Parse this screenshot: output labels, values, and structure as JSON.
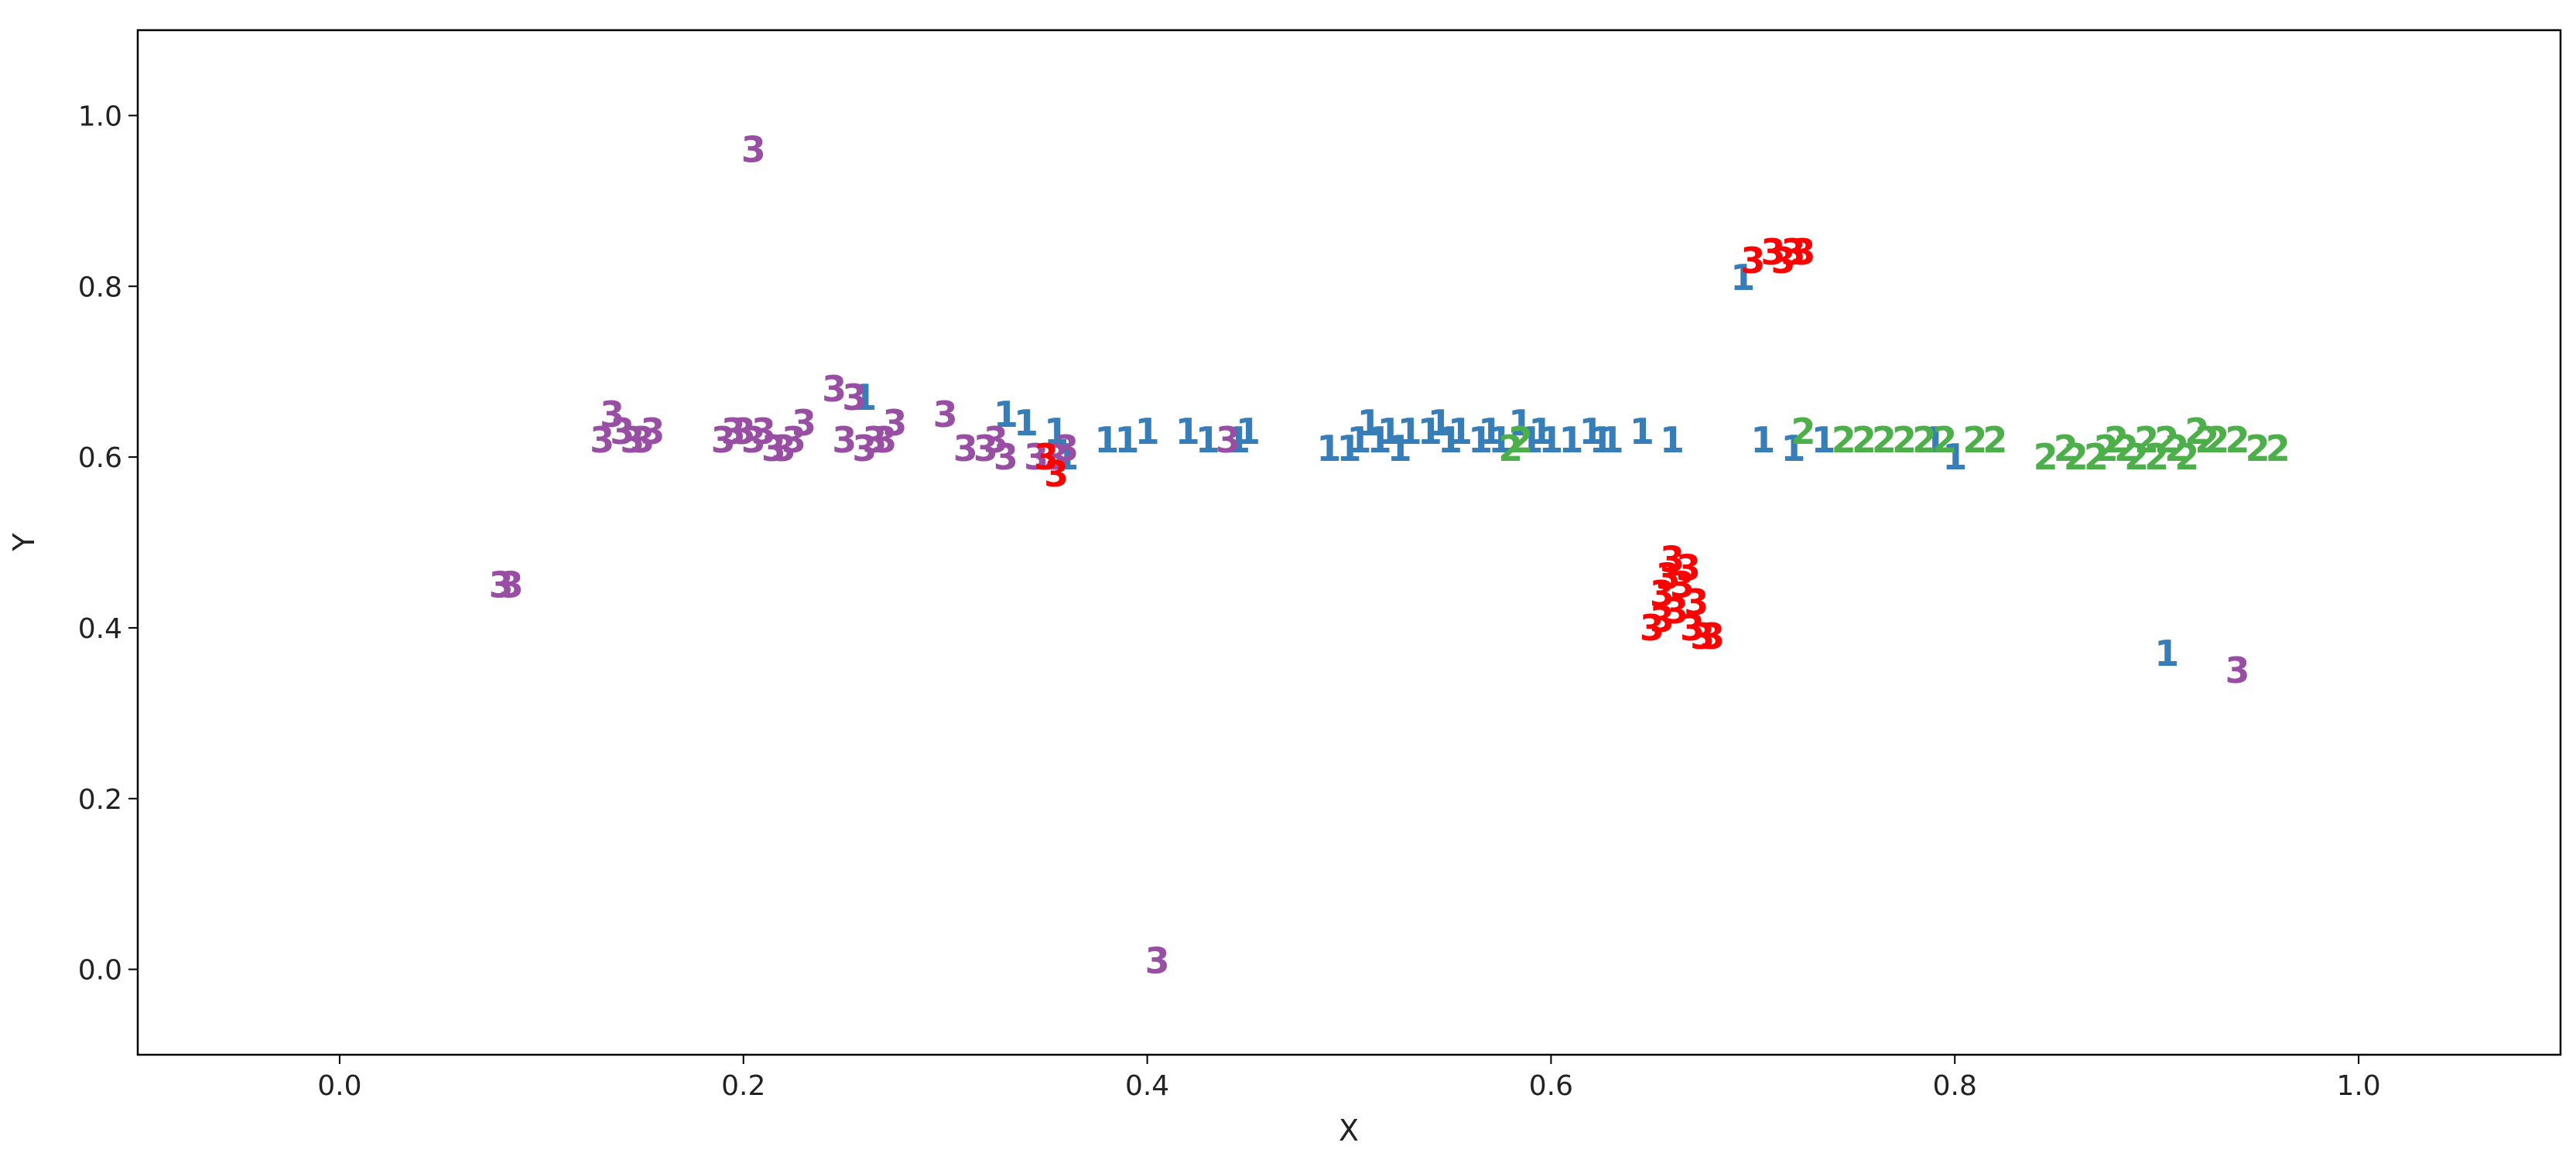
{
  "chart_data": {
    "type": "scatter",
    "title": "",
    "xlabel": "X",
    "ylabel": "Y",
    "xlim": [
      -0.1,
      1.1
    ],
    "ylim": [
      -0.1,
      1.1
    ],
    "xticks": [
      "0.0",
      "0.2",
      "0.4",
      "0.6",
      "0.8",
      "1.0"
    ],
    "yticks": [
      "0.0",
      "0.2",
      "0.4",
      "0.6",
      "0.8",
      "1.0"
    ],
    "grid": false,
    "legend": "none",
    "series": [
      {
        "label": "1",
        "color": "#377eb8",
        "points": [
          [
            0.26,
            0.67
          ],
          [
            0.33,
            0.65
          ],
          [
            0.34,
            0.64
          ],
          [
            0.355,
            0.63
          ],
          [
            0.36,
            0.6
          ],
          [
            0.38,
            0.62
          ],
          [
            0.39,
            0.62
          ],
          [
            0.4,
            0.63
          ],
          [
            0.42,
            0.63
          ],
          [
            0.43,
            0.62
          ],
          [
            0.445,
            0.62
          ],
          [
            0.45,
            0.63
          ],
          [
            0.49,
            0.61
          ],
          [
            0.5,
            0.61
          ],
          [
            0.505,
            0.62
          ],
          [
            0.51,
            0.64
          ],
          [
            0.515,
            0.62
          ],
          [
            0.52,
            0.63
          ],
          [
            0.525,
            0.61
          ],
          [
            0.53,
            0.63
          ],
          [
            0.54,
            0.63
          ],
          [
            0.545,
            0.64
          ],
          [
            0.55,
            0.62
          ],
          [
            0.555,
            0.63
          ],
          [
            0.565,
            0.62
          ],
          [
            0.57,
            0.63
          ],
          [
            0.575,
            0.62
          ],
          [
            0.585,
            0.64
          ],
          [
            0.59,
            0.62
          ],
          [
            0.595,
            0.63
          ],
          [
            0.6,
            0.62
          ],
          [
            0.61,
            0.62
          ],
          [
            0.62,
            0.63
          ],
          [
            0.625,
            0.62
          ],
          [
            0.63,
            0.62
          ],
          [
            0.645,
            0.63
          ],
          [
            0.66,
            0.62
          ],
          [
            0.695,
            0.81
          ],
          [
            0.705,
            0.62
          ],
          [
            0.72,
            0.61
          ],
          [
            0.735,
            0.62
          ],
          [
            0.79,
            0.62
          ],
          [
            0.8,
            0.6
          ],
          [
            0.905,
            0.37
          ]
        ]
      },
      {
        "label": "2",
        "color": "#4daf4a",
        "points": [
          [
            0.58,
            0.61
          ],
          [
            0.585,
            0.62
          ],
          [
            0.725,
            0.63
          ],
          [
            0.745,
            0.62
          ],
          [
            0.755,
            0.62
          ],
          [
            0.765,
            0.62
          ],
          [
            0.775,
            0.62
          ],
          [
            0.785,
            0.62
          ],
          [
            0.795,
            0.62
          ],
          [
            0.81,
            0.62
          ],
          [
            0.82,
            0.62
          ],
          [
            0.845,
            0.6
          ],
          [
            0.855,
            0.61
          ],
          [
            0.86,
            0.6
          ],
          [
            0.87,
            0.6
          ],
          [
            0.875,
            0.61
          ],
          [
            0.88,
            0.62
          ],
          [
            0.885,
            0.61
          ],
          [
            0.89,
            0.6
          ],
          [
            0.895,
            0.62
          ],
          [
            0.9,
            0.6
          ],
          [
            0.905,
            0.62
          ],
          [
            0.91,
            0.61
          ],
          [
            0.915,
            0.6
          ],
          [
            0.92,
            0.63
          ],
          [
            0.925,
            0.62
          ],
          [
            0.93,
            0.62
          ],
          [
            0.94,
            0.62
          ],
          [
            0.95,
            0.61
          ],
          [
            0.96,
            0.61
          ]
        ]
      },
      {
        "label": "3",
        "color": "#984ea3",
        "points": [
          [
            0.08,
            0.45
          ],
          [
            0.085,
            0.45
          ],
          [
            0.13,
            0.62
          ],
          [
            0.135,
            0.65
          ],
          [
            0.14,
            0.63
          ],
          [
            0.145,
            0.62
          ],
          [
            0.15,
            0.62
          ],
          [
            0.155,
            0.63
          ],
          [
            0.19,
            0.62
          ],
          [
            0.195,
            0.63
          ],
          [
            0.2,
            0.63
          ],
          [
            0.205,
            0.96
          ],
          [
            0.205,
            0.62
          ],
          [
            0.21,
            0.63
          ],
          [
            0.215,
            0.61
          ],
          [
            0.22,
            0.61
          ],
          [
            0.225,
            0.62
          ],
          [
            0.23,
            0.64
          ],
          [
            0.245,
            0.68
          ],
          [
            0.25,
            0.62
          ],
          [
            0.255,
            0.67
          ],
          [
            0.26,
            0.61
          ],
          [
            0.265,
            0.62
          ],
          [
            0.27,
            0.62
          ],
          [
            0.275,
            0.64
          ],
          [
            0.3,
            0.65
          ],
          [
            0.31,
            0.61
          ],
          [
            0.32,
            0.61
          ],
          [
            0.325,
            0.62
          ],
          [
            0.33,
            0.6
          ],
          [
            0.345,
            0.6
          ],
          [
            0.355,
            0.6
          ],
          [
            0.36,
            0.61
          ],
          [
            0.405,
            0.01
          ],
          [
            0.44,
            0.62
          ],
          [
            0.94,
            0.35
          ]
        ]
      },
      {
        "label": "3",
        "color": "#ff0000",
        "points": [
          [
            0.35,
            0.6
          ],
          [
            0.355,
            0.58
          ],
          [
            0.65,
            0.4
          ],
          [
            0.655,
            0.41
          ],
          [
            0.655,
            0.44
          ],
          [
            0.658,
            0.46
          ],
          [
            0.66,
            0.48
          ],
          [
            0.662,
            0.42
          ],
          [
            0.665,
            0.45
          ],
          [
            0.668,
            0.47
          ],
          [
            0.67,
            0.4
          ],
          [
            0.672,
            0.43
          ],
          [
            0.675,
            0.39
          ],
          [
            0.68,
            0.39
          ],
          [
            0.7,
            0.83
          ],
          [
            0.71,
            0.84
          ],
          [
            0.715,
            0.83
          ],
          [
            0.72,
            0.84
          ],
          [
            0.725,
            0.84
          ]
        ]
      }
    ]
  }
}
